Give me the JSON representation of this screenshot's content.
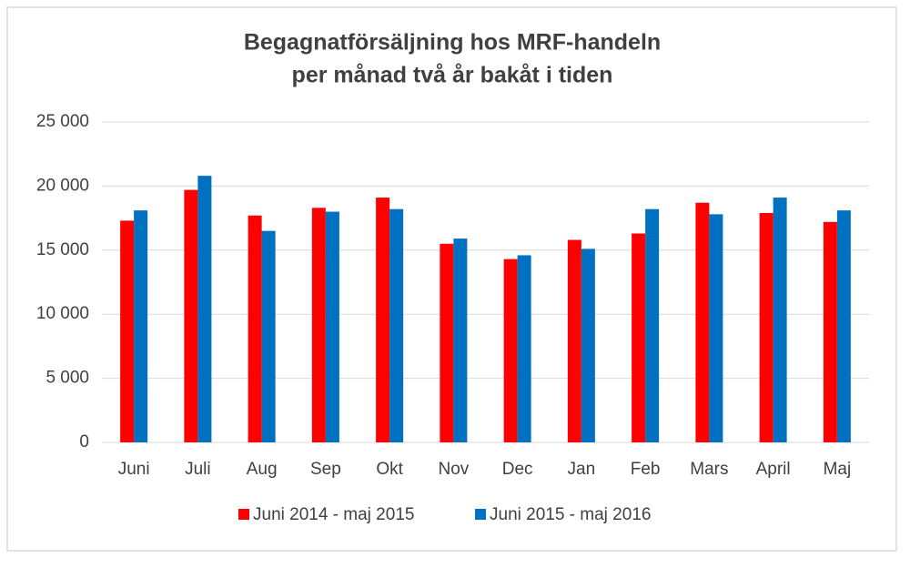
{
  "chart_data": {
    "type": "bar",
    "title": [
      "Begagnatförsäljning hos MRF-handeln",
      "per månad två år bakåt i tiden"
    ],
    "categories": [
      "Juni",
      "Juli",
      "Aug",
      "Sep",
      "Okt",
      "Nov",
      "Dec",
      "Jan",
      "Feb",
      "Mars",
      "April",
      "Maj"
    ],
    "series": [
      {
        "name": "Juni 2014 - maj 2015",
        "color": "#ff0000",
        "values": [
          17300,
          19700,
          17700,
          18300,
          19100,
          15500,
          14300,
          15800,
          16300,
          18700,
          17900,
          17200
        ]
      },
      {
        "name": "Juni 2015 - maj 2016",
        "color": "#0070c0",
        "values": [
          18100,
          20800,
          16500,
          18000,
          18200,
          15900,
          14600,
          15100,
          18200,
          17800,
          19100,
          18100
        ]
      }
    ],
    "ylim": [
      0,
      25000
    ],
    "yticks": [
      0,
      {
        "value": 5000,
        "label": "5 000"
      },
      {
        "value": 10000,
        "label": "10 000"
      },
      {
        "value": 15000,
        "label": "15 000"
      },
      {
        "value": 20000,
        "label": "20 000"
      },
      {
        "value": 25000,
        "label": "25 000"
      }
    ],
    "grid": true,
    "legend": "bottom"
  }
}
